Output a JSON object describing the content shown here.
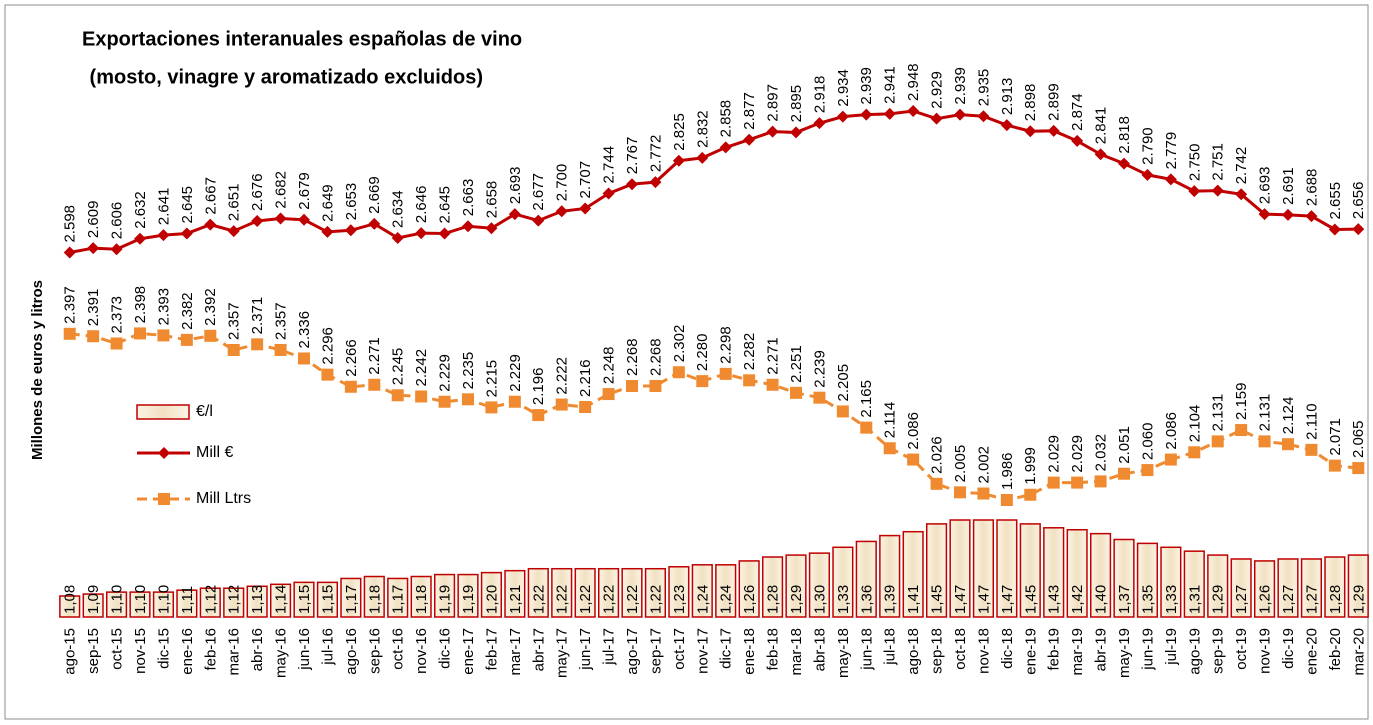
{
  "chart_data": {
    "type": "bar-line",
    "title": "Exportaciones interanuales españolas de vino",
    "subtitle": " (mosto, vinagre y aromatizado excluidos)",
    "y_label": "Millones de euros y litros",
    "categories": [
      "ago-15",
      "sep-15",
      "oct-15",
      "nov-15",
      "dic-15",
      "ene-16",
      "feb-16",
      "mar-16",
      "abr-16",
      "may-16",
      "jun-16",
      "jul-16",
      "ago-16",
      "sep-16",
      "oct-16",
      "nov-16",
      "dic-16",
      "ene-17",
      "feb-17",
      "mar-17",
      "abr-17",
      "may-17",
      "jun-17",
      "jul-17",
      "ago-17",
      "sep-17",
      "oct-17",
      "nov-17",
      "dic-17",
      "ene-18",
      "feb-18",
      "mar-18",
      "abr-18",
      "may-18",
      "jun-18",
      "jul-18",
      "ago-18",
      "sep-18",
      "oct-18",
      "nov-18",
      "dic-18",
      "ene-19",
      "feb-19",
      "mar-19",
      "abr-19",
      "may-19",
      "jun-19",
      "jul-19",
      "ago-19",
      "sep-19",
      "oct-19",
      "nov-19",
      "dic-19",
      "ene-20",
      "feb-20",
      "mar-20"
    ],
    "series": [
      {
        "name": "€/l",
        "type": "bar",
        "color": "#f5e6c8",
        "edge": "#c00000",
        "values": [
          1.08,
          1.09,
          1.1,
          1.1,
          1.1,
          1.11,
          1.12,
          1.12,
          1.13,
          1.14,
          1.15,
          1.15,
          1.17,
          1.18,
          1.17,
          1.18,
          1.19,
          1.19,
          1.2,
          1.21,
          1.22,
          1.22,
          1.22,
          1.22,
          1.22,
          1.22,
          1.23,
          1.24,
          1.24,
          1.26,
          1.28,
          1.29,
          1.3,
          1.33,
          1.36,
          1.39,
          1.41,
          1.45,
          1.47,
          1.47,
          1.47,
          1.45,
          1.43,
          1.42,
          1.4,
          1.37,
          1.35,
          1.33,
          1.31,
          1.29,
          1.27,
          1.26,
          1.27,
          1.27,
          1.28,
          1.29
        ],
        "value_labels": [
          "1,08",
          "1,09",
          "1,10",
          "1,10",
          "1,10",
          "1,11",
          "1,12",
          "1,12",
          "1,13",
          "1,14",
          "1,15",
          "1,15",
          "1,17",
          "1,18",
          "1,17",
          "1,18",
          "1,19",
          "1,19",
          "1,20",
          "1,21",
          "1,22",
          "1,22",
          "1,22",
          "1,22",
          "1,22",
          "1,22",
          "1,23",
          "1,24",
          "1,24",
          "1,26",
          "1,28",
          "1,29",
          "1,30",
          "1,33",
          "1,36",
          "1,39",
          "1,41",
          "1,45",
          "1,47",
          "1,47",
          "1,47",
          "1,45",
          "1,43",
          "1,42",
          "1,40",
          "1,37",
          "1,35",
          "1,33",
          "1,31",
          "1,29",
          "1,27",
          "1,26",
          "1,27",
          "1,27",
          "1,28",
          "1,29"
        ]
      },
      {
        "name": "Mill €",
        "type": "line",
        "marker": "diamond",
        "dashed": false,
        "color": "#c00000",
        "values": [
          2.598,
          2.609,
          2.606,
          2.632,
          2.641,
          2.645,
          2.667,
          2.651,
          2.676,
          2.682,
          2.679,
          2.649,
          2.653,
          2.669,
          2.634,
          2.646,
          2.645,
          2.663,
          2.658,
          2.693,
          2.677,
          2.7,
          2.707,
          2.744,
          2.767,
          2.772,
          2.825,
          2.832,
          2.858,
          2.877,
          2.897,
          2.895,
          2.918,
          2.934,
          2.939,
          2.941,
          2.948,
          2.929,
          2.939,
          2.935,
          2.913,
          2.898,
          2.899,
          2.874,
          2.841,
          2.818,
          2.79,
          2.779,
          2.75,
          2.751,
          2.742,
          2.693,
          2.691,
          2.688,
          2.655,
          2.656
        ],
        "value_labels": [
          "2.598",
          "2.609",
          "2.606",
          "2.632",
          "2.641",
          "2.645",
          "2.667",
          "2.651",
          "2.676",
          "2.682",
          "2.679",
          "2.649",
          "2.653",
          "2.669",
          "2.634",
          "2.646",
          "2.645",
          "2.663",
          "2.658",
          "2.693",
          "2.677",
          "2.700",
          "2.707",
          "2.744",
          "2.767",
          "2.772",
          "2.825",
          "2.832",
          "2.858",
          "2.877",
          "2.897",
          "2.895",
          "2.918",
          "2.934",
          "2.939",
          "2.941",
          "2.948",
          "2.929",
          "2.939",
          "2.935",
          "2.913",
          "2.898",
          "2.899",
          "2.874",
          "2.841",
          "2.818",
          "2.790",
          "2.779",
          "2.750",
          "2.751",
          "2.742",
          "2.693",
          "2.691",
          "2.688",
          "2.655",
          "2.656"
        ]
      },
      {
        "name": "Mill Ltrs",
        "type": "line",
        "marker": "square",
        "dashed": true,
        "color": "#f08a30",
        "values": [
          2.397,
          2.391,
          2.373,
          2.398,
          2.393,
          2.382,
          2.392,
          2.357,
          2.371,
          2.357,
          2.336,
          2.296,
          2.266,
          2.271,
          2.245,
          2.242,
          2.229,
          2.235,
          2.215,
          2.229,
          2.196,
          2.222,
          2.216,
          2.248,
          2.268,
          2.268,
          2.302,
          2.28,
          2.298,
          2.282,
          2.271,
          2.251,
          2.239,
          2.205,
          2.165,
          2.114,
          2.086,
          2.026,
          2.005,
          2.002,
          1.986,
          1.999,
          2.029,
          2.029,
          2.032,
          2.051,
          2.06,
          2.086,
          2.104,
          2.131,
          2.159,
          2.131,
          2.124,
          2.11,
          2.071,
          2.065
        ],
        "value_labels": [
          "2.397",
          "2.391",
          "2.373",
          "2.398",
          "2.393",
          "2.382",
          "2.392",
          "2.357",
          "2.371",
          "2.357",
          "2.336",
          "2.296",
          "2.266",
          "2.271",
          "2.245",
          "2.242",
          "2.229",
          "2.235",
          "2.215",
          "2.229",
          "2.196",
          "2.222",
          "2.216",
          "2.248",
          "2.268",
          "2.268",
          "2.302",
          "2.280",
          "2.298",
          "2.282",
          "2.271",
          "2.251",
          "2.239",
          "2.205",
          "2.165",
          "2.114",
          "2.086",
          "2.026",
          "2.005",
          "2.002",
          "1.986",
          "1.999",
          "2.029",
          "2.029",
          "2.032",
          "2.051",
          "2.060",
          "2.086",
          "2.104",
          "2.131",
          "2.159",
          "2.131",
          "2.124",
          "2.110",
          "2.071",
          "2.065"
        ]
      }
    ]
  }
}
